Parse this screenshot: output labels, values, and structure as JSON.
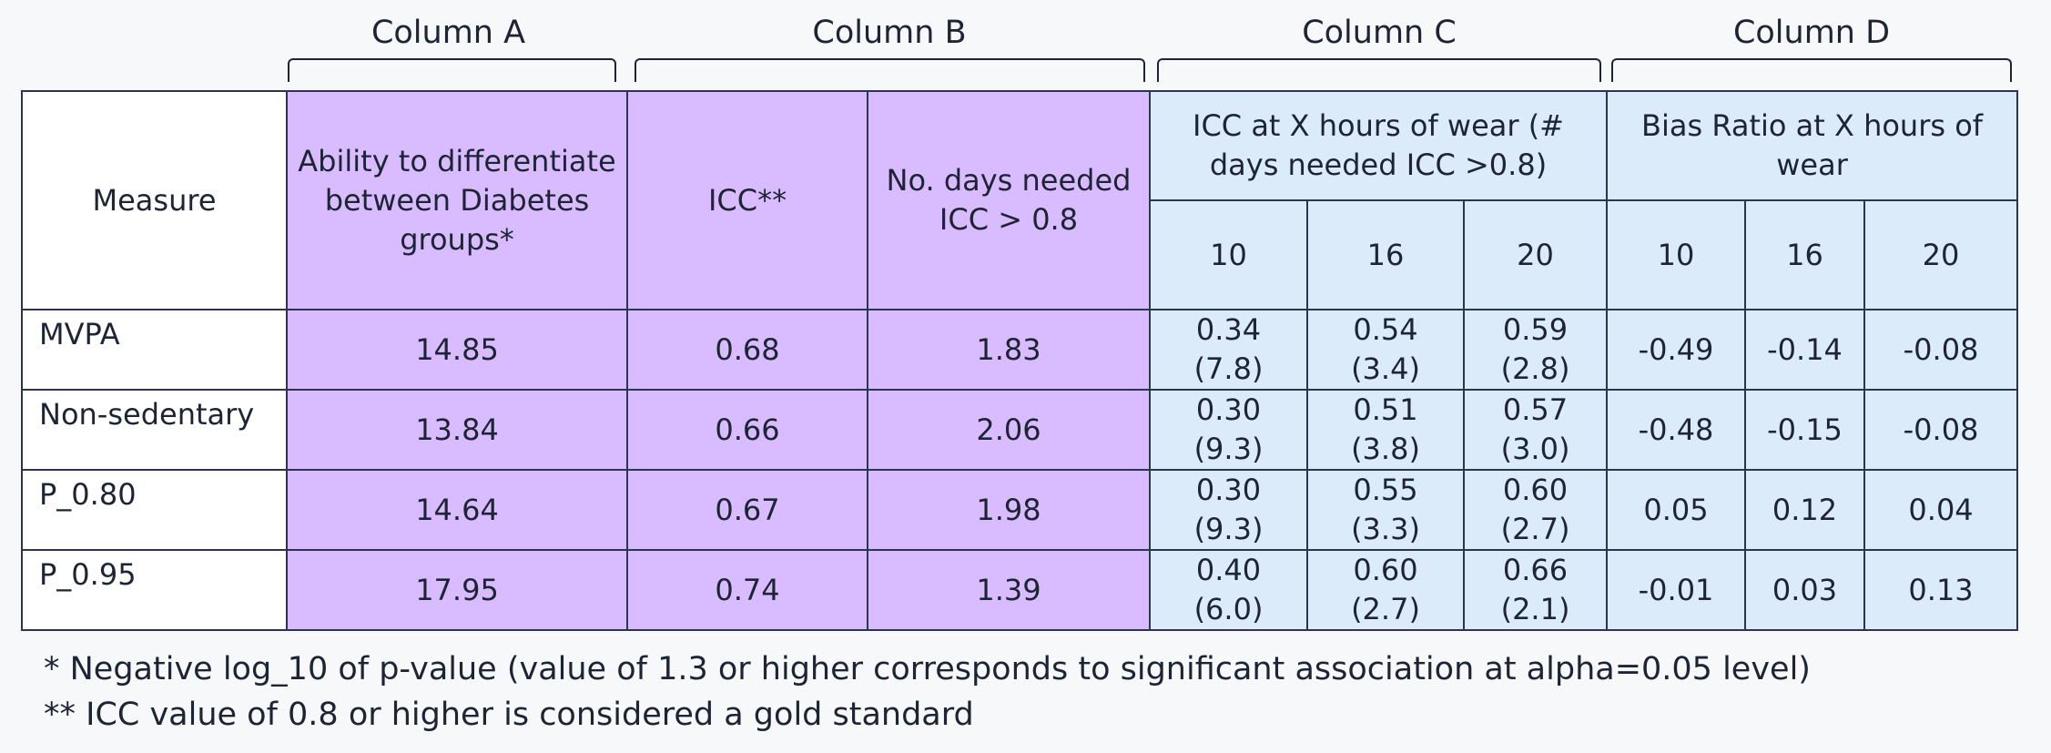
{
  "column_groups": [
    "Column A",
    "Column B",
    "Column C",
    "Column D"
  ],
  "header": {
    "measure": "Measure",
    "ability": "Ability to differentiate between Diabetes groups*",
    "icc": "ICC**",
    "days_needed": "No. days needed ICC > 0.8",
    "icc_hours": "ICC at X hours of wear (# days needed ICC >0.8)",
    "bias_ratio": "Bias Ratio at X hours of wear",
    "hours": [
      "10",
      "16",
      "20"
    ]
  },
  "rows": [
    {
      "measure": "MVPA",
      "ability": "14.85",
      "icc": "0.68",
      "days": "1.83",
      "icc10": "0.34",
      "icc10_days": "(7.8)",
      "icc16": "0.54",
      "icc16_days": "(3.4)",
      "icc20": "0.59",
      "icc20_days": "(2.8)",
      "bias10": "-0.49",
      "bias16": "-0.14",
      "bias20": "-0.08"
    },
    {
      "measure": "Non-sedentary",
      "ability": "13.84",
      "icc": "0.66",
      "days": "2.06",
      "icc10": "0.30",
      "icc10_days": "(9.3)",
      "icc16": "0.51",
      "icc16_days": "(3.8)",
      "icc20": "0.57",
      "icc20_days": "(3.0)",
      "bias10": "-0.48",
      "bias16": "-0.15",
      "bias20": "-0.08"
    },
    {
      "measure": "P_0.80",
      "ability": "14.64",
      "icc": "0.67",
      "days": "1.98",
      "icc10": "0.30",
      "icc10_days": "(9.3)",
      "icc16": "0.55",
      "icc16_days": "(3.3)",
      "icc20": "0.60",
      "icc20_days": "(2.7)",
      "bias10": "0.05",
      "bias16": "0.12",
      "bias20": "0.04"
    },
    {
      "measure": "P_0.95",
      "ability": "17.95",
      "icc": "0.74",
      "days": "1.39",
      "icc10": "0.40",
      "icc10_days": "(6.0)",
      "icc16": "0.60",
      "icc16_days": "(2.7)",
      "icc20": "0.66",
      "icc20_days": "(2.1)",
      "bias10": "-0.01",
      "bias16": "0.03",
      "bias20": "0.13"
    }
  ],
  "footnotes": [
    "* Negative log_10 of p-value (value of 1.3 or higher corresponds to significant association at alpha=0.05 level)",
    "** ICC value of 0.8 or higher is considered a gold standard"
  ],
  "colors": {
    "purple": "#d9bcff",
    "light_blue": "#dcebfa",
    "border": "#2c3550",
    "background": "#f7f8fa"
  }
}
